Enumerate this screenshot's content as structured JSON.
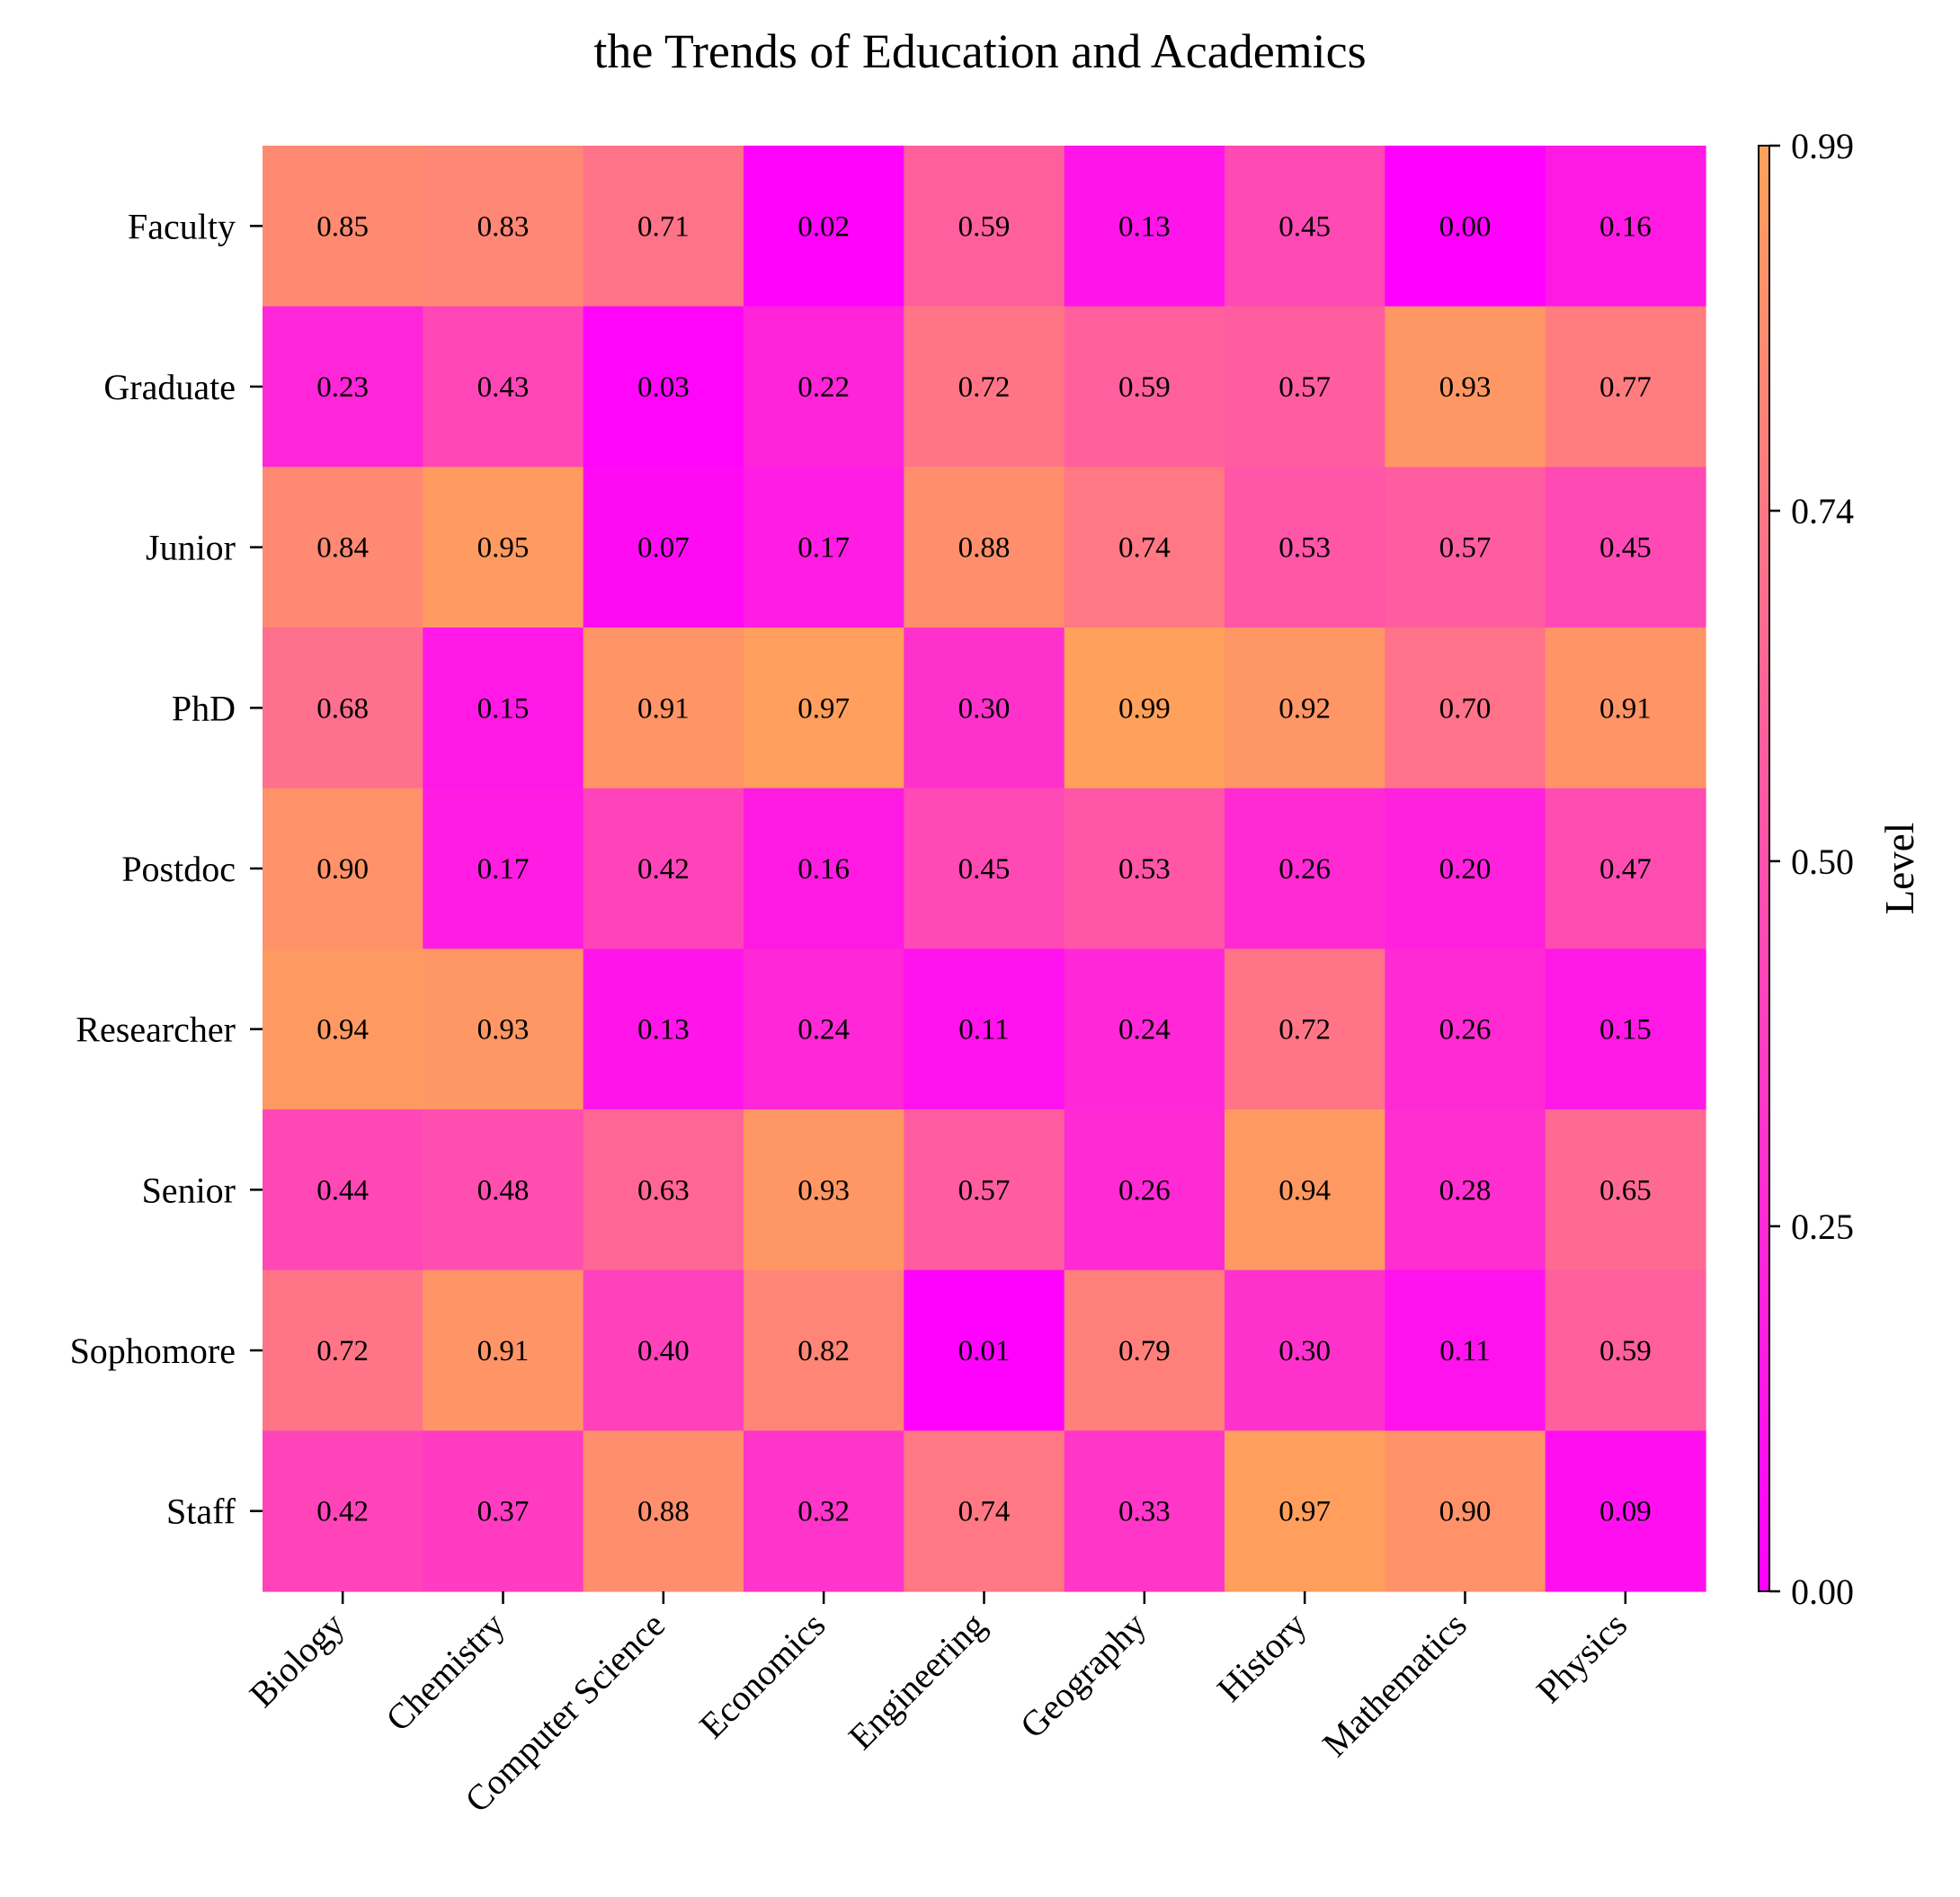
{
  "chart_data": {
    "type": "heatmap",
    "title": "the Trends of Education and Academics",
    "xlabel": "",
    "ylabel": "",
    "columns": [
      "Biology",
      "Chemistry",
      "Computer Science",
      "Economics",
      "Engineering",
      "Geography",
      "History",
      "Mathematics",
      "Physics"
    ],
    "rows": [
      "Faculty",
      "Graduate",
      "Junior",
      "PhD",
      "Postdoc",
      "Researcher",
      "Senior",
      "Sophomore",
      "Staff"
    ],
    "values": [
      [
        0.85,
        0.83,
        0.71,
        0.02,
        0.59,
        0.13,
        0.45,
        0.0,
        0.16
      ],
      [
        0.23,
        0.43,
        0.03,
        0.22,
        0.72,
        0.59,
        0.57,
        0.93,
        0.77
      ],
      [
        0.84,
        0.95,
        0.07,
        0.17,
        0.88,
        0.74,
        0.53,
        0.57,
        0.45
      ],
      [
        0.68,
        0.15,
        0.91,
        0.97,
        0.3,
        0.99,
        0.92,
        0.7,
        0.91
      ],
      [
        0.9,
        0.17,
        0.42,
        0.16,
        0.45,
        0.53,
        0.26,
        0.2,
        0.47
      ],
      [
        0.94,
        0.93,
        0.13,
        0.24,
        0.11,
        0.24,
        0.72,
        0.26,
        0.15
      ],
      [
        0.44,
        0.48,
        0.63,
        0.93,
        0.57,
        0.26,
        0.94,
        0.28,
        0.65
      ],
      [
        0.72,
        0.91,
        0.4,
        0.82,
        0.01,
        0.79,
        0.3,
        0.11,
        0.59
      ],
      [
        0.42,
        0.37,
        0.88,
        0.32,
        0.74,
        0.33,
        0.97,
        0.9,
        0.09
      ]
    ],
    "value_format": "0.00",
    "colormap": {
      "name": "spring",
      "low_color": "#ff00ff",
      "high_color": "#ffa15a"
    },
    "colorbar": {
      "label": "Level",
      "range": [
        0.0,
        0.99
      ],
      "ticks": [
        0.0,
        0.25,
        0.5,
        0.74,
        0.99
      ],
      "tick_labels": [
        "0.00",
        "0.25",
        "0.50",
        "0.74",
        "0.99"
      ]
    },
    "grid": false
  }
}
